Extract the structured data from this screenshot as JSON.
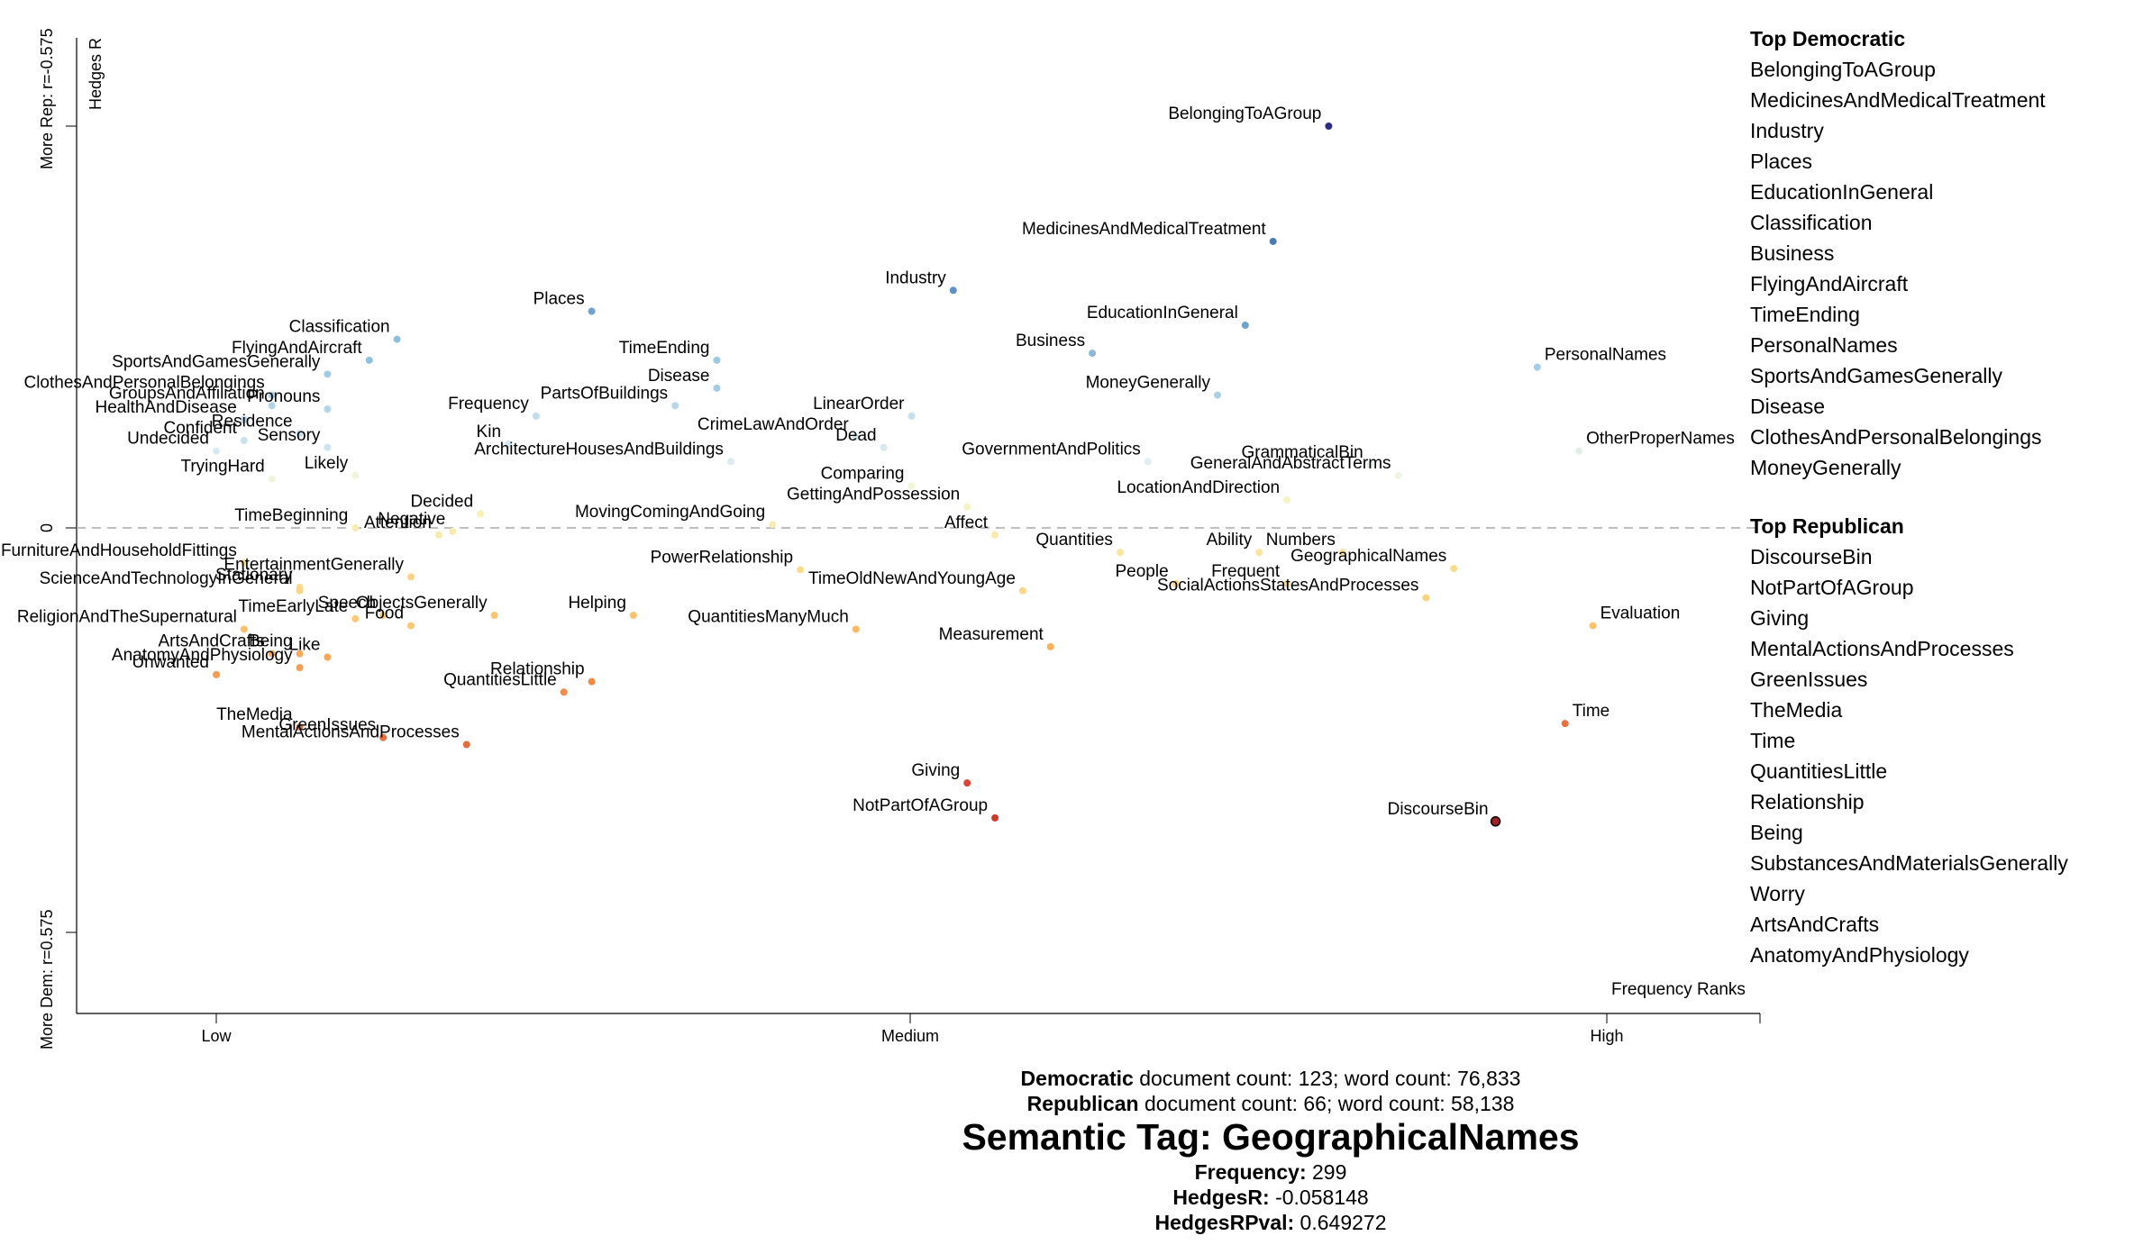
{
  "chart_data": {
    "type": "scatter",
    "x_ticks": [
      "Low",
      "Medium",
      "High"
    ],
    "x_label": "Frequency Ranks",
    "y_label": "Hedges R",
    "y_ticks": [
      "More Rep: r=-0.575",
      "0",
      "More Dem: r=0.575"
    ],
    "ylim": [
      -0.575,
      0.575
    ],
    "points": [
      {
        "label": "BelongingToAGroup",
        "x": 0.8,
        "y": 0.575,
        "color": "#2b2f7e"
      },
      {
        "label": "MedicinesAndMedicalTreatment",
        "x": 0.76,
        "y": 0.41,
        "color": "#4a7db0"
      },
      {
        "label": "Industry",
        "x": 0.53,
        "y": 0.34,
        "color": "#5e92c4"
      },
      {
        "label": "EducationInGeneral",
        "x": 0.74,
        "y": 0.29,
        "color": "#6fa3cc"
      },
      {
        "label": "Places",
        "x": 0.27,
        "y": 0.31,
        "color": "#6fa3cc"
      },
      {
        "label": "Business",
        "x": 0.63,
        "y": 0.25,
        "color": "#8db8d8"
      },
      {
        "label": "Classification",
        "x": 0.13,
        "y": 0.27,
        "color": "#8dbedc"
      },
      {
        "label": "FlyingAndAircraft",
        "x": 0.11,
        "y": 0.24,
        "color": "#8fc0dc"
      },
      {
        "label": "TimeEnding",
        "x": 0.36,
        "y": 0.24,
        "color": "#9cc8e0"
      },
      {
        "label": "PersonalNames",
        "x": 0.95,
        "y": 0.23,
        "color": "#a6cde2"
      },
      {
        "label": "SportsAndGamesGenerally",
        "x": 0.08,
        "y": 0.22,
        "color": "#a1cbe2"
      },
      {
        "label": "Disease",
        "x": 0.36,
        "y": 0.2,
        "color": "#a5cce2"
      },
      {
        "label": "ClothesAndPersonalBelongings",
        "x": 0.04,
        "y": 0.19,
        "color": "#a6cee3"
      },
      {
        "label": "MoneyGenerally",
        "x": 0.72,
        "y": 0.19,
        "color": "#abd0e4"
      },
      {
        "label": "GroupsAndAffiliation",
        "x": 0.04,
        "y": 0.175,
        "color": "#b2d4e6"
      },
      {
        "label": "Pronouns",
        "x": 0.08,
        "y": 0.17,
        "color": "#b3d5e7"
      },
      {
        "label": "PartsOfBuildings",
        "x": 0.33,
        "y": 0.175,
        "color": "#b7d7e8"
      },
      {
        "label": "HealthAndDisease",
        "x": 0.02,
        "y": 0.155,
        "color": "#bcdaea"
      },
      {
        "label": "Frequency",
        "x": 0.23,
        "y": 0.16,
        "color": "#c2ddeb"
      },
      {
        "label": "LinearOrder",
        "x": 0.5,
        "y": 0.16,
        "color": "#c6e0ec"
      },
      {
        "label": "Residence",
        "x": 0.06,
        "y": 0.135,
        "color": "#c4dfec"
      },
      {
        "label": "Confident",
        "x": 0.02,
        "y": 0.125,
        "color": "#c9e2ee"
      },
      {
        "label": "Sensory",
        "x": 0.08,
        "y": 0.115,
        "color": "#cde4ef"
      },
      {
        "label": "CrimeLawAndOrder",
        "x": 0.46,
        "y": 0.13,
        "color": "#d2e7f0"
      },
      {
        "label": "Kin",
        "x": 0.21,
        "y": 0.12,
        "color": "#d4e8f0"
      },
      {
        "label": "Dead",
        "x": 0.48,
        "y": 0.115,
        "color": "#d6e9f1"
      },
      {
        "label": "Undecided",
        "x": 0.0,
        "y": 0.11,
        "color": "#d6eaf1"
      },
      {
        "label": "ArchitectureHousesAndBuildings",
        "x": 0.37,
        "y": 0.095,
        "color": "#dcecf3"
      },
      {
        "label": "GovernmentAndPolitics",
        "x": 0.67,
        "y": 0.095,
        "color": "#e0eef2"
      },
      {
        "label": "GrammaticalBin",
        "x": 0.83,
        "y": 0.09,
        "color": "#e7f1e8"
      },
      {
        "label": "OtherProperNames",
        "x": 0.98,
        "y": 0.11,
        "color": "#e3efe6"
      },
      {
        "label": "GeneralAndAbstractTerms",
        "x": 0.85,
        "y": 0.075,
        "color": "#eef5e2"
      },
      {
        "label": "Comparing",
        "x": 0.5,
        "y": 0.06,
        "color": "#eff6d8"
      },
      {
        "label": "TryingHard",
        "x": 0.04,
        "y": 0.07,
        "color": "#eef5dc"
      },
      {
        "label": "Likely",
        "x": 0.1,
        "y": 0.075,
        "color": "#eef5dc"
      },
      {
        "label": "GettingAndPossession",
        "x": 0.54,
        "y": 0.03,
        "color": "#f7f3c0"
      },
      {
        "label": "LocationAndDirection",
        "x": 0.77,
        "y": 0.04,
        "color": "#f7f3c3"
      },
      {
        "label": "Decided",
        "x": 0.19,
        "y": 0.02,
        "color": "#f7f0b8"
      },
      {
        "label": "MovingComingAndGoing",
        "x": 0.4,
        "y": 0.005,
        "color": "#f8eeb5"
      },
      {
        "label": "TimeBeginning",
        "x": 0.1,
        "y": 0.0,
        "color": "#f8edb2"
      },
      {
        "label": "Negative",
        "x": 0.17,
        "y": -0.005,
        "color": "#f9ecb0"
      },
      {
        "label": "Attention",
        "x": 0.16,
        "y": -0.01,
        "color": "#f9eaad"
      },
      {
        "label": "Affect",
        "x": 0.56,
        "y": -0.01,
        "color": "#f9eaac"
      },
      {
        "label": "Quantities",
        "x": 0.65,
        "y": -0.035,
        "color": "#fae5a0"
      },
      {
        "label": "Ability",
        "x": 0.75,
        "y": -0.035,
        "color": "#fae4a0"
      },
      {
        "label": "Numbers",
        "x": 0.81,
        "y": -0.035,
        "color": "#fae49e"
      },
      {
        "label": "FurnitureAndHouseholdFittings",
        "x": 0.02,
        "y": -0.05,
        "color": "#fbe096"
      },
      {
        "label": "Stationary",
        "x": 0.06,
        "y": -0.085,
        "color": "#fbdc8e"
      },
      {
        "label": "PowerRelationship",
        "x": 0.42,
        "y": -0.06,
        "color": "#fbdc8f"
      },
      {
        "label": "TimeOldNewAndYoungAge",
        "x": 0.58,
        "y": -0.09,
        "color": "#fbd889"
      },
      {
        "label": "People",
        "x": 0.69,
        "y": -0.08,
        "color": "#fbd98b"
      },
      {
        "label": "Frequent",
        "x": 0.77,
        "y": -0.08,
        "color": "#fbd98a"
      },
      {
        "label": "GeographicalNames",
        "x": 0.89,
        "y": -0.058148,
        "color": "#fbda8c"
      },
      {
        "label": "ScienceAndTechnologyInGeneral",
        "x": 0.06,
        "y": -0.09,
        "color": "#fbd586"
      },
      {
        "label": "EntertainmentGenerally",
        "x": 0.14,
        "y": -0.07,
        "color": "#fcd489"
      },
      {
        "label": "SocialActionsStatesAndProcesses",
        "x": 0.87,
        "y": -0.1,
        "color": "#fcd280"
      },
      {
        "label": "TimeEarlyLate",
        "x": 0.1,
        "y": -0.13,
        "color": "#fcc977"
      },
      {
        "label": "Speech",
        "x": 0.12,
        "y": -0.125,
        "color": "#fcca78"
      },
      {
        "label": "Food",
        "x": 0.14,
        "y": -0.14,
        "color": "#fcc674"
      },
      {
        "label": "ObjectsGenerally",
        "x": 0.2,
        "y": -0.125,
        "color": "#fcc570"
      },
      {
        "label": "Helping",
        "x": 0.3,
        "y": -0.125,
        "color": "#fcc36f"
      },
      {
        "label": "Evaluation",
        "x": 0.99,
        "y": -0.14,
        "color": "#fcc16c"
      },
      {
        "label": "ReligionAndTheSupernatural",
        "x": 0.02,
        "y": -0.145,
        "color": "#fcbf6b"
      },
      {
        "label": "QuantitiesManyMuch",
        "x": 0.46,
        "y": -0.145,
        "color": "#fbba67"
      },
      {
        "label": "Measurement",
        "x": 0.6,
        "y": -0.17,
        "color": "#f8b15f"
      },
      {
        "label": "ArtsAndCrafts",
        "x": 0.04,
        "y": -0.18,
        "color": "#f7ad5c"
      },
      {
        "label": "Being",
        "x": 0.06,
        "y": -0.18,
        "color": "#f7aa5a"
      },
      {
        "label": "Like",
        "x": 0.08,
        "y": -0.185,
        "color": "#f7a858"
      },
      {
        "label": "Unwanted",
        "x": 0.0,
        "y": -0.21,
        "color": "#f59c52"
      },
      {
        "label": "AnatomyAndPhysiology",
        "x": 0.06,
        "y": -0.2,
        "color": "#f59f54"
      },
      {
        "label": "QuantitiesLittle",
        "x": 0.25,
        "y": -0.235,
        "color": "#f18d48"
      },
      {
        "label": "Relationship",
        "x": 0.27,
        "y": -0.22,
        "color": "#f08a47"
      },
      {
        "label": "TheMedia",
        "x": 0.06,
        "y": -0.285,
        "color": "#eb7b41"
      },
      {
        "label": "GreenIssues",
        "x": 0.12,
        "y": -0.3,
        "color": "#e77140"
      },
      {
        "label": "MentalActionsAndProcesses",
        "x": 0.18,
        "y": -0.31,
        "color": "#e46c3e"
      },
      {
        "label": "Time",
        "x": 0.97,
        "y": -0.28,
        "color": "#e7713f"
      },
      {
        "label": "Giving",
        "x": 0.54,
        "y": -0.365,
        "color": "#d84631"
      },
      {
        "label": "NotPartOfAGroup",
        "x": 0.56,
        "y": -0.415,
        "color": "#cc3a2b"
      },
      {
        "label": "DiscourseBin",
        "x": 0.92,
        "y": -0.42,
        "color": "#a01f26"
      }
    ]
  },
  "top_democratic": {
    "heading": "Top Democratic",
    "items": [
      "BelongingToAGroup",
      "MedicinesAndMedicalTreatment",
      "Industry",
      "Places",
      "EducationInGeneral",
      "Classification",
      "Business",
      "FlyingAndAircraft",
      "TimeEnding",
      "PersonalNames",
      "SportsAndGamesGenerally",
      "Disease",
      "ClothesAndPersonalBelongings",
      "MoneyGenerally"
    ]
  },
  "top_republican": {
    "heading": "Top Republican",
    "items": [
      "DiscourseBin",
      "NotPartOfAGroup",
      "Giving",
      "MentalActionsAndProcesses",
      "GreenIssues",
      "TheMedia",
      "Time",
      "QuantitiesLittle",
      "Relationship",
      "Being",
      "SubstancesAndMaterialsGenerally",
      "Worry",
      "ArtsAndCrafts",
      "AnatomyAndPhysiology"
    ]
  },
  "counts": {
    "dem_label": "Democratic",
    "dem_text": " document count: 123; word count: 76,833",
    "rep_label": "Republican",
    "rep_text": " document count: 66; word count: 58,138"
  },
  "detail": {
    "title": "Semantic Tag: GeographicalNames",
    "frequency_label": "Frequency:",
    "frequency_value": " 299",
    "hedgesr_label": "HedgesR:",
    "hedgesr_value": " -0.058148",
    "pval_label": "HedgesRPval:",
    "pval_value": " 0.649272"
  }
}
